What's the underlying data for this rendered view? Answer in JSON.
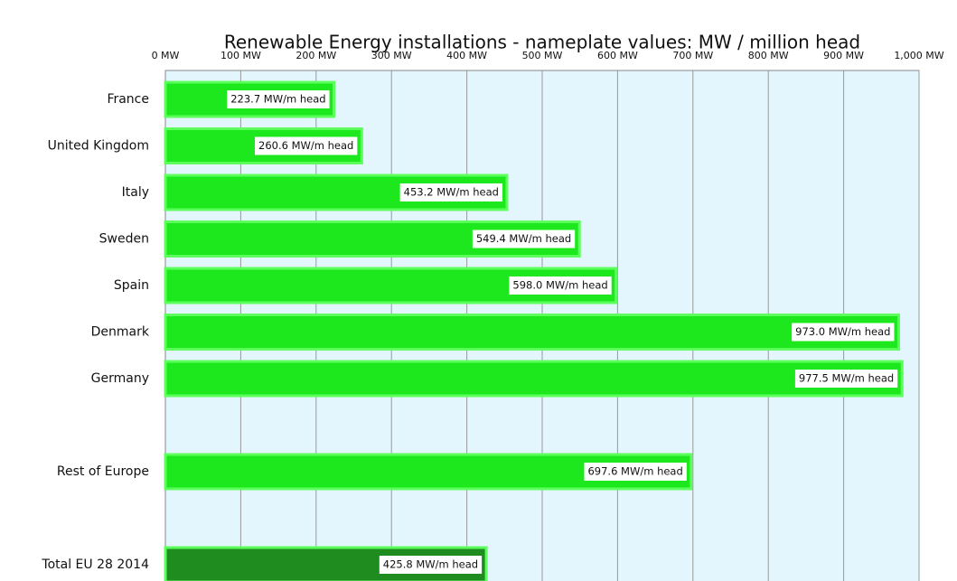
{
  "chart_data": {
    "type": "hbar",
    "title": "Renewable Energy installations - nameplate values:  MW / million head",
    "categories": [
      "France",
      "United Kingdom",
      "Italy",
      "Sweden",
      "Spain",
      "Denmark",
      "Germany",
      null,
      "Rest of Europe",
      null,
      "Total  EU 28  2014"
    ],
    "values": [
      223.7,
      260.6,
      453.2,
      549.4,
      598.0,
      973.0,
      977.5,
      null,
      697.6,
      null,
      425.8
    ],
    "value_labels": [
      "223.7 MW/m head",
      "260.6 MW/m head",
      "453.2 MW/m head",
      "549.4 MW/m head",
      "598.0 MW/m head",
      "973.0 MW/m head",
      "977.5 MW/m head",
      null,
      "697.6 MW/m head",
      null,
      "425.8 MW/m head"
    ],
    "colors": [
      "#1de81d",
      "#1de81d",
      "#1de81d",
      "#1de81d",
      "#1de81d",
      "#1de81d",
      "#1de81d",
      null,
      "#1de81d",
      null,
      "#1e8c1e"
    ],
    "xlim": [
      0,
      1000
    ],
    "xticks": [
      {
        "value": 0,
        "label": "0 MW"
      },
      {
        "value": 100,
        "label": "100 MW"
      },
      {
        "value": 200,
        "label": "200 MW"
      },
      {
        "value": 300,
        "label": "300 MW"
      },
      {
        "value": 400,
        "label": "400 MW"
      },
      {
        "value": 500,
        "label": "500 MW"
      },
      {
        "value": 600,
        "label": "600 MW"
      },
      {
        "value": 700,
        "label": "700 MW"
      },
      {
        "value": 800,
        "label": "800 MW"
      },
      {
        "value": 900,
        "label": "900 MW"
      },
      {
        "value": 1000,
        "label": "1,000 MW"
      }
    ],
    "grid": true
  }
}
